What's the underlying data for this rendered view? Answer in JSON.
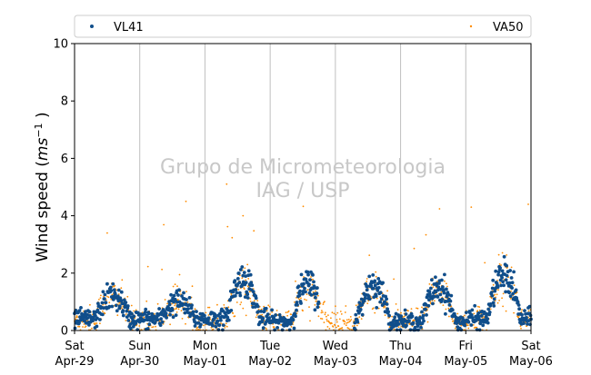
{
  "chart_data": {
    "type": "scatter",
    "title": "",
    "ylabel": "Wind speed (ms⁻¹ )",
    "ylim": [
      0,
      10
    ],
    "yticks": [
      0,
      2,
      4,
      6,
      8,
      10
    ],
    "xlim": [
      "2023-04-29 00:00",
      "2023-05-06 00:00"
    ],
    "xticks": [
      {
        "day": "Sat",
        "date": "Apr-29"
      },
      {
        "day": "Sun",
        "date": "Apr-30"
      },
      {
        "day": "Mon",
        "date": "May-01"
      },
      {
        "day": "Tue",
        "date": "May-02"
      },
      {
        "day": "Wed",
        "date": "May-03"
      },
      {
        "day": "Thu",
        "date": "May-04"
      },
      {
        "day": "Fri",
        "date": "May-05"
      },
      {
        "day": "Sat",
        "date": "May-06"
      }
    ],
    "grid": "vertical at day boundaries",
    "legend_position": "top, outside plot",
    "watermark": [
      "Grupo de Micrometeorologia",
      "IAG / USP"
    ],
    "series": [
      {
        "name": "VL41",
        "color": "#104e8b",
        "marker": "large dot",
        "sampling": "10-minute",
        "daily_pattern": [
          {
            "day": "Apr-29",
            "night_mean": 0.4,
            "day_peak": 1.2
          },
          {
            "day": "Apr-30",
            "night_mean": 0.4,
            "day_peak": 1.0
          },
          {
            "day": "May-01",
            "night_mean": 0.4,
            "day_peak": 1.8
          },
          {
            "day": "May-02",
            "night_mean": 0.3,
            "day_peak": 1.6
          },
          {
            "day": "May-03",
            "night_mean": 0.3,
            "day_peak": 1.6
          },
          {
            "day": "May-04",
            "night_mean": 0.3,
            "day_peak": 1.5
          },
          {
            "day": "May-05",
            "night_mean": 0.4,
            "day_peak": 1.9
          },
          {
            "day": "May-06",
            "night_mean": 0.4,
            "day_peak": 2.1
          }
        ],
        "gaps": [
          [
            "2023-05-02 18:00",
            "2023-05-03 07:00"
          ]
        ]
      },
      {
        "name": "VA50",
        "color": "#ff8c00",
        "marker": "small dot",
        "sampling": "10-minute",
        "daily_pattern": [
          {
            "day": "Apr-29",
            "night_mean": 0.4,
            "day_peak": 1.2
          },
          {
            "day": "Apr-30",
            "night_mean": 0.4,
            "day_peak": 1.0
          },
          {
            "day": "May-01",
            "night_mean": 0.4,
            "day_peak": 1.6
          },
          {
            "day": "May-02",
            "night_mean": 0.3,
            "day_peak": 1.4
          },
          {
            "day": "May-03",
            "night_mean": 0.3,
            "day_peak": 1.4
          },
          {
            "day": "May-04",
            "night_mean": 0.3,
            "day_peak": 1.3
          },
          {
            "day": "May-05",
            "night_mean": 0.4,
            "day_peak": 1.8
          },
          {
            "day": "May-06",
            "night_mean": 0.4,
            "day_peak": 2.0
          }
        ],
        "notable_values": [
          {
            "x": "2023-04-29 12:00",
            "y": 3.4
          },
          {
            "x": "2023-04-30 17:00",
            "y": 4.5
          },
          {
            "x": "2023-05-01 08:00",
            "y": 5.1
          },
          {
            "x": "2023-05-01 14:00",
            "y": 4.0
          },
          {
            "x": "2023-05-05 02:00",
            "y": 4.3
          },
          {
            "x": "2023-05-05 23:00",
            "y": 4.4
          }
        ]
      }
    ]
  }
}
